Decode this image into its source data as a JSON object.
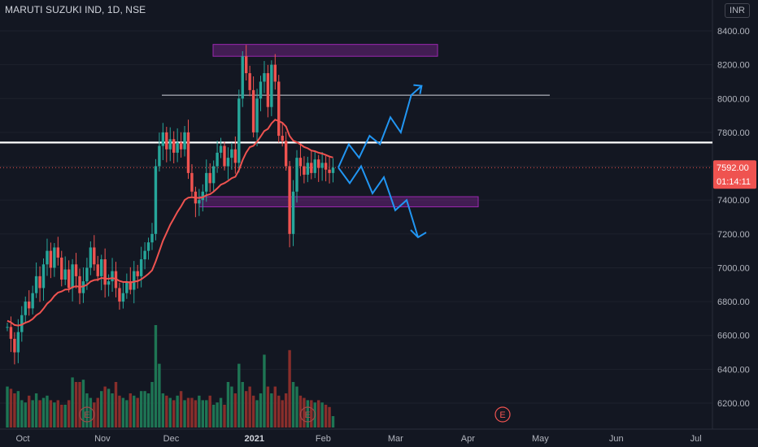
{
  "chart_title": "MARUTI SUZUKI IND, 1D, NSE",
  "currency_button": "INR",
  "price_tag": {
    "value": "7592.00",
    "countdown": "01:14:11",
    "color": "#ef5350"
  },
  "earnings_marker": "E",
  "colors": {
    "bull": "#26a69a",
    "bear": "#ef5350",
    "ma": "#ef5350",
    "zone": "#9c27b0",
    "arrows": "#2196f3"
  },
  "chart_data": {
    "type": "candlestick",
    "title": "MARUTI SUZUKI IND, 1D, NSE",
    "y_axis": {
      "min": 6100,
      "max": 8450,
      "ticks": [
        8400,
        8200,
        8000,
        7800,
        7600,
        7400,
        7200,
        7000,
        6800,
        6600,
        6400,
        6200
      ],
      "tick_labels": [
        "8400.00",
        "8200.00",
        "8000.00",
        "7800.00",
        "7600.00",
        "7400.00",
        "7200.00",
        "7000.00",
        "6800.00",
        "6600.00",
        "6400.00",
        "6200.00"
      ]
    },
    "x_axis": {
      "labels": [
        "Oct",
        "Nov",
        "Dec",
        "2021",
        "Feb",
        "Mar",
        "Apr",
        "May",
        "Jun",
        "Jul"
      ],
      "label_days": [
        0,
        22,
        41,
        64,
        83,
        103,
        123,
        143,
        164,
        186
      ]
    },
    "last_price": 7592,
    "candles_start_price": 6650,
    "closes": [
      6650,
      6580,
      6500,
      6620,
      6720,
      6800,
      6760,
      6850,
      6950,
      6880,
      7020,
      7100,
      7000,
      7120,
      7060,
      6930,
      6990,
      6880,
      7020,
      6950,
      6850,
      6920,
      7000,
      7120,
      7020,
      6950,
      7050,
      6900,
      6920,
      6980,
      6880,
      6800,
      6850,
      6920,
      6870,
      6980,
      6950,
      7050,
      7100,
      7150,
      7200,
      7600,
      7720,
      7800,
      7700,
      7760,
      7680,
      7740,
      7700,
      7800,
      7560,
      7450,
      7380,
      7400,
      7450,
      7560,
      7500,
      7600,
      7680,
      7720,
      7600,
      7650,
      7700,
      7620,
      8000,
      8250,
      8150,
      8050,
      7800,
      8000,
      8100,
      8150,
      7950,
      8200,
      8100,
      7780,
      7750,
      7600,
      7200,
      7450,
      7650,
      7600,
      7550,
      7620,
      7560,
      7640,
      7590,
      7620,
      7580,
      7560,
      7592
    ],
    "volumes": [
      0.18,
      0.17,
      0.15,
      0.16,
      0.12,
      0.11,
      0.14,
      0.12,
      0.15,
      0.12,
      0.13,
      0.14,
      0.12,
      0.11,
      0.12,
      0.1,
      0.1,
      0.12,
      0.22,
      0.2,
      0.2,
      0.21,
      0.15,
      0.13,
      0.11,
      0.13,
      0.16,
      0.18,
      0.17,
      0.15,
      0.2,
      0.14,
      0.13,
      0.12,
      0.15,
      0.14,
      0.13,
      0.16,
      0.16,
      0.15,
      0.2,
      0.45,
      0.28,
      0.15,
      0.14,
      0.13,
      0.12,
      0.14,
      0.16,
      0.12,
      0.13,
      0.13,
      0.12,
      0.14,
      0.12,
      0.12,
      0.14,
      0.1,
      0.11,
      0.13,
      0.1,
      0.2,
      0.18,
      0.15,
      0.28,
      0.2,
      0.16,
      0.18,
      0.14,
      0.12,
      0.15,
      0.32,
      0.18,
      0.15,
      0.18,
      0.14,
      0.12,
      0.15,
      0.34,
      0.2,
      0.18,
      0.14,
      0.13,
      0.12,
      0.12,
      0.11,
      0.12,
      0.11,
      0.1,
      0.09,
      0.05
    ],
    "moving_average": {
      "start": 6690,
      "end": 7600
    },
    "annotations": {
      "supply_zone": {
        "from": 8250,
        "to": 8320
      },
      "demand_zone": {
        "from": 7360,
        "to": 7420
      },
      "thin_line": 8020,
      "thick_line": 7740,
      "up_path_prices": [
        7592,
        7730,
        7650,
        7780,
        7730,
        7890,
        7800,
        8020,
        8075
      ],
      "down_path_prices": [
        7592,
        7500,
        7600,
        7440,
        7535,
        7340,
        7400,
        7180
      ]
    },
    "earnings_days": [
      22,
      83,
      143
    ]
  }
}
